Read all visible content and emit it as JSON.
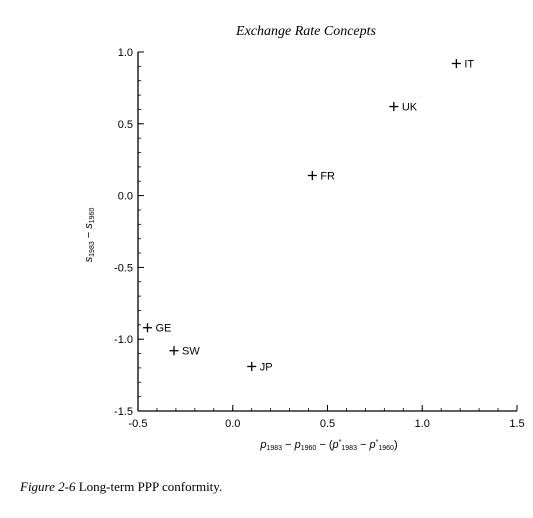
{
  "page": {
    "header": "Exchange Rate Concepts",
    "caption_label": "Figure 2-6",
    "caption_text": "Long-term PPP conformity."
  },
  "chart_data": {
    "type": "scatter",
    "title": "",
    "xlabel": "p1983 − p1960 − (p*1983 − p*1960)",
    "ylabel": "s1983 − s1960",
    "xlim": [
      -0.5,
      1.5
    ],
    "ylim": [
      -1.5,
      1.0
    ],
    "xticks": [
      "-0.5",
      "0.0",
      "0.5",
      "1.0",
      "1.5"
    ],
    "yticks": [
      "1.0",
      "0.5",
      "0.0",
      "-0.5",
      "-1.0",
      "-1.5"
    ],
    "grid": false,
    "marker": "+",
    "points": [
      {
        "label": "IT",
        "x": 1.18,
        "y": 0.92
      },
      {
        "label": "UK",
        "x": 0.85,
        "y": 0.62
      },
      {
        "label": "FR",
        "x": 0.42,
        "y": 0.14
      },
      {
        "label": "GE",
        "x": -0.45,
        "y": -0.92
      },
      {
        "label": "SW",
        "x": -0.31,
        "y": -1.08
      },
      {
        "label": "JP",
        "x": 0.1,
        "y": -1.19
      }
    ]
  }
}
